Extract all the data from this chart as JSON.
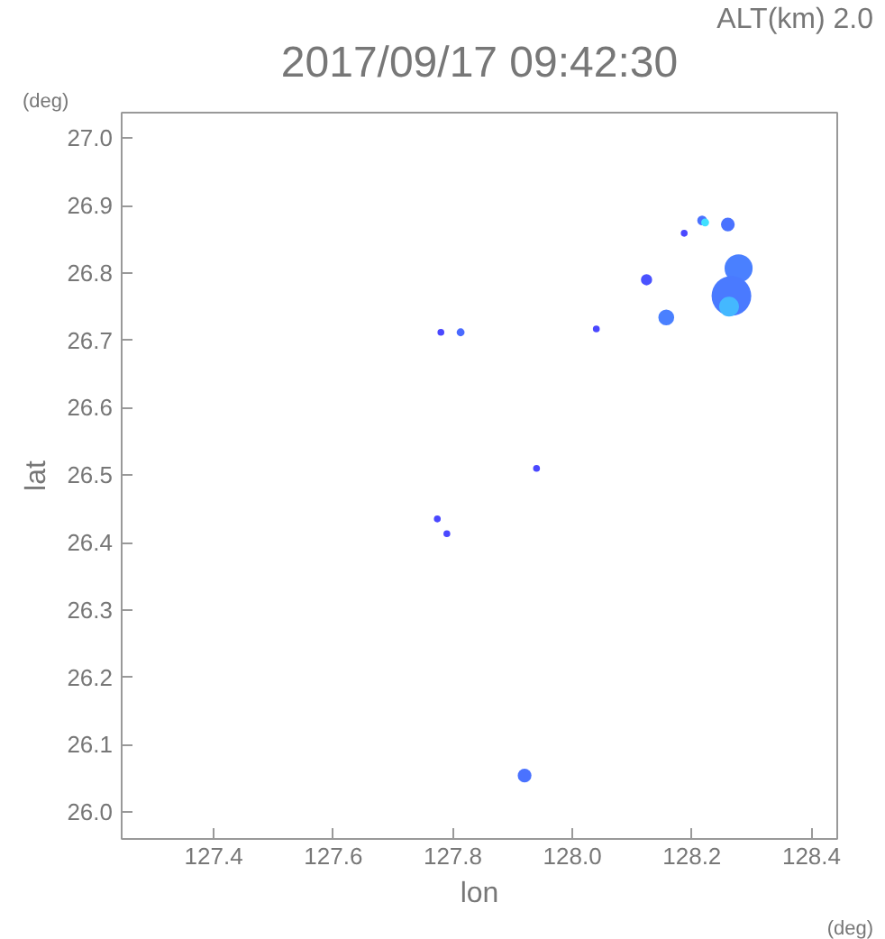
{
  "chart_data": {
    "type": "bubble",
    "title": "2017/09/17 09:42:30",
    "subtitle": "ALT(km) 2.0",
    "xlabel": "lon",
    "ylabel": "lat",
    "annotations": [
      "(deg)",
      "(deg)"
    ],
    "x": [
      127.78,
      127.813,
      128.04,
      127.94,
      127.774,
      127.79,
      127.92,
      128.217,
      128.222,
      128.26,
      128.187,
      128.124,
      128.157,
      128.278,
      128.266,
      128.262
    ],
    "values": [
      26.712,
      26.712,
      26.717,
      26.51,
      26.435,
      26.413,
      26.054,
      26.878,
      26.875,
      26.872,
      26.859,
      26.79,
      26.734,
      26.807,
      26.766,
      26.75
    ],
    "sizes": [
      0.03,
      0.04,
      0.03,
      0.03,
      0.03,
      0.03,
      0.12,
      0.06,
      0.04,
      0.12,
      0.03,
      0.08,
      0.16,
      0.5,
      1,
      0.25
    ],
    "colors": [
      "#4a48ff",
      "#4a6aff",
      "#4a48ff",
      "#4a48ff",
      "#4a48ff",
      "#4a48ff",
      "#4a72ff",
      "#4a72ff",
      "#40e0ff",
      "#4a72ff",
      "#4a48ff",
      "#4a52ff",
      "#4a80ff",
      "#4a80ff",
      "#4a7aff",
      "#44b8ff"
    ],
    "xlim": [
      127.246,
      128.443
    ],
    "ylim": [
      25.96,
      27.038
    ],
    "xticks": [
      {
        "value": 127.4,
        "label": "127.4"
      },
      {
        "value": 127.6,
        "label": "127.6"
      },
      {
        "value": 127.8,
        "label": "127.8"
      },
      {
        "value": 128.0,
        "label": "128.0"
      },
      {
        "value": 128.2,
        "label": "128.2"
      },
      {
        "value": 128.4,
        "label": "128.4"
      }
    ],
    "yticks": [
      {
        "value": 26.0,
        "label": "26.0"
      },
      {
        "value": 26.1,
        "label": "26.1"
      },
      {
        "value": 26.2,
        "label": "26.2"
      },
      {
        "value": 26.3,
        "label": "26.3"
      },
      {
        "value": 26.4,
        "label": "26.4"
      },
      {
        "value": 26.5,
        "label": "26.5"
      },
      {
        "value": 26.6,
        "label": "26.6"
      },
      {
        "value": 26.7,
        "label": "26.7"
      },
      {
        "value": 26.8,
        "label": "26.8"
      },
      {
        "value": 26.9,
        "label": "26.9"
      },
      {
        "value": 27.0,
        "label": "27.0"
      }
    ]
  }
}
